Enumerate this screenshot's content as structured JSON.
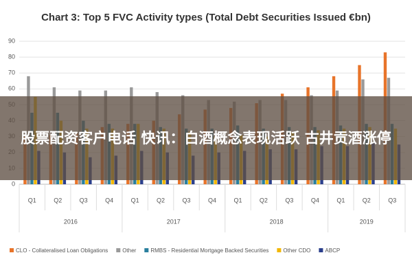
{
  "chart_data": {
    "type": "bar",
    "title": "Chart 3: Top 5 FVC Activity types (Total Debt Securities Issued €bn)",
    "groups": [
      {
        "label": "2016",
        "categories": [
          "Q1",
          "Q2",
          "Q3",
          "Q4"
        ]
      },
      {
        "label": "2017",
        "categories": [
          "Q1",
          "Q2",
          "Q3",
          "Q4"
        ]
      },
      {
        "label": "2018",
        "categories": [
          "Q1",
          "Q2",
          "Q3",
          "Q4"
        ]
      },
      {
        "label": "2019",
        "categories": [
          "Q1",
          "Q2",
          "Q3"
        ]
      }
    ],
    "series": [
      {
        "name": "CLO - Collateralised Loan Obligations",
        "color": "#e8742a",
        "values": [
          30,
          31,
          32,
          36,
          38,
          40,
          44,
          47,
          48,
          51,
          57,
          61,
          68,
          75,
          83
        ]
      },
      {
        "name": "Other",
        "color": "#9a9a9a",
        "values": [
          68,
          61,
          59,
          59,
          61,
          58,
          56,
          53,
          52,
          53,
          53,
          56,
          59,
          66,
          67
        ]
      },
      {
        "name": "RMBS - Residential Mortgage Backed Securities",
        "color": "#2a7f9e",
        "values": [
          45,
          45,
          40,
          38,
          38,
          36,
          35,
          35,
          37,
          35,
          36,
          36,
          37,
          38,
          38
        ]
      },
      {
        "name": "Other CDO",
        "color": "#f2b705",
        "values": [
          55,
          40,
          35,
          35,
          38,
          35,
          33,
          30,
          31,
          30,
          33,
          34,
          35,
          36,
          35
        ]
      },
      {
        "name": "ABCP",
        "color": "#2b3f8c",
        "values": [
          21,
          20,
          17,
          18,
          21,
          20,
          18,
          20,
          21,
          22,
          22,
          24,
          24,
          26,
          25
        ]
      }
    ],
    "ylim": [
      0,
      90
    ],
    "yticks": [
      0,
      10,
      20,
      30,
      40,
      50,
      60,
      70,
      80,
      90
    ],
    "grid": true
  },
  "banner": {
    "text": "股票配资客户电话 快讯：白酒概念表现活跃 古井贡酒涨停"
  }
}
